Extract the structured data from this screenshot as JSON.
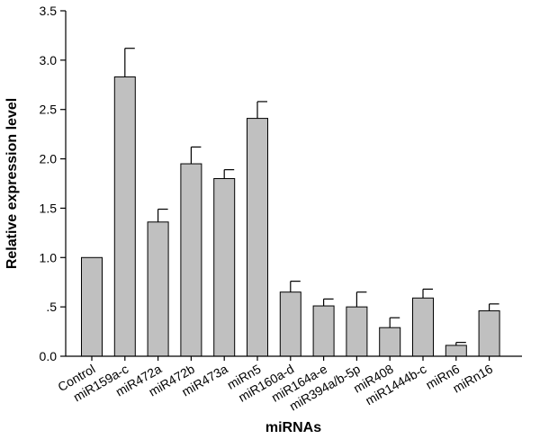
{
  "chart_data": {
    "type": "bar",
    "title": "",
    "xlabel": "miRNAs",
    "ylabel": "Relative expression level",
    "ylim": [
      0,
      3.5
    ],
    "yticks": [
      0.0,
      0.5,
      1.0,
      1.5,
      2.0,
      2.5,
      3.0,
      3.5
    ],
    "ytick_labels": [
      "0.0",
      ".5",
      "1.0",
      "1.5",
      "2.0",
      "2.5",
      "3.0",
      "3.5"
    ],
    "categories": [
      "Control",
      "miR159a-c",
      "miR472a",
      "miR472b",
      "miR473a",
      "miRn5",
      "miR160a-d",
      "miR164a-e",
      "miR394a/b-5p",
      "miR408",
      "miR1444b-c",
      "miRn6",
      "miRn16"
    ],
    "values": [
      1.0,
      2.83,
      1.36,
      1.95,
      1.8,
      2.41,
      0.65,
      0.51,
      0.5,
      0.29,
      0.59,
      0.11,
      0.46
    ],
    "errors": [
      0.0,
      0.29,
      0.13,
      0.17,
      0.09,
      0.17,
      0.11,
      0.07,
      0.15,
      0.1,
      0.09,
      0.03,
      0.07
    ],
    "bar_color": "#c0c0c0",
    "grid": false,
    "legend": false
  }
}
